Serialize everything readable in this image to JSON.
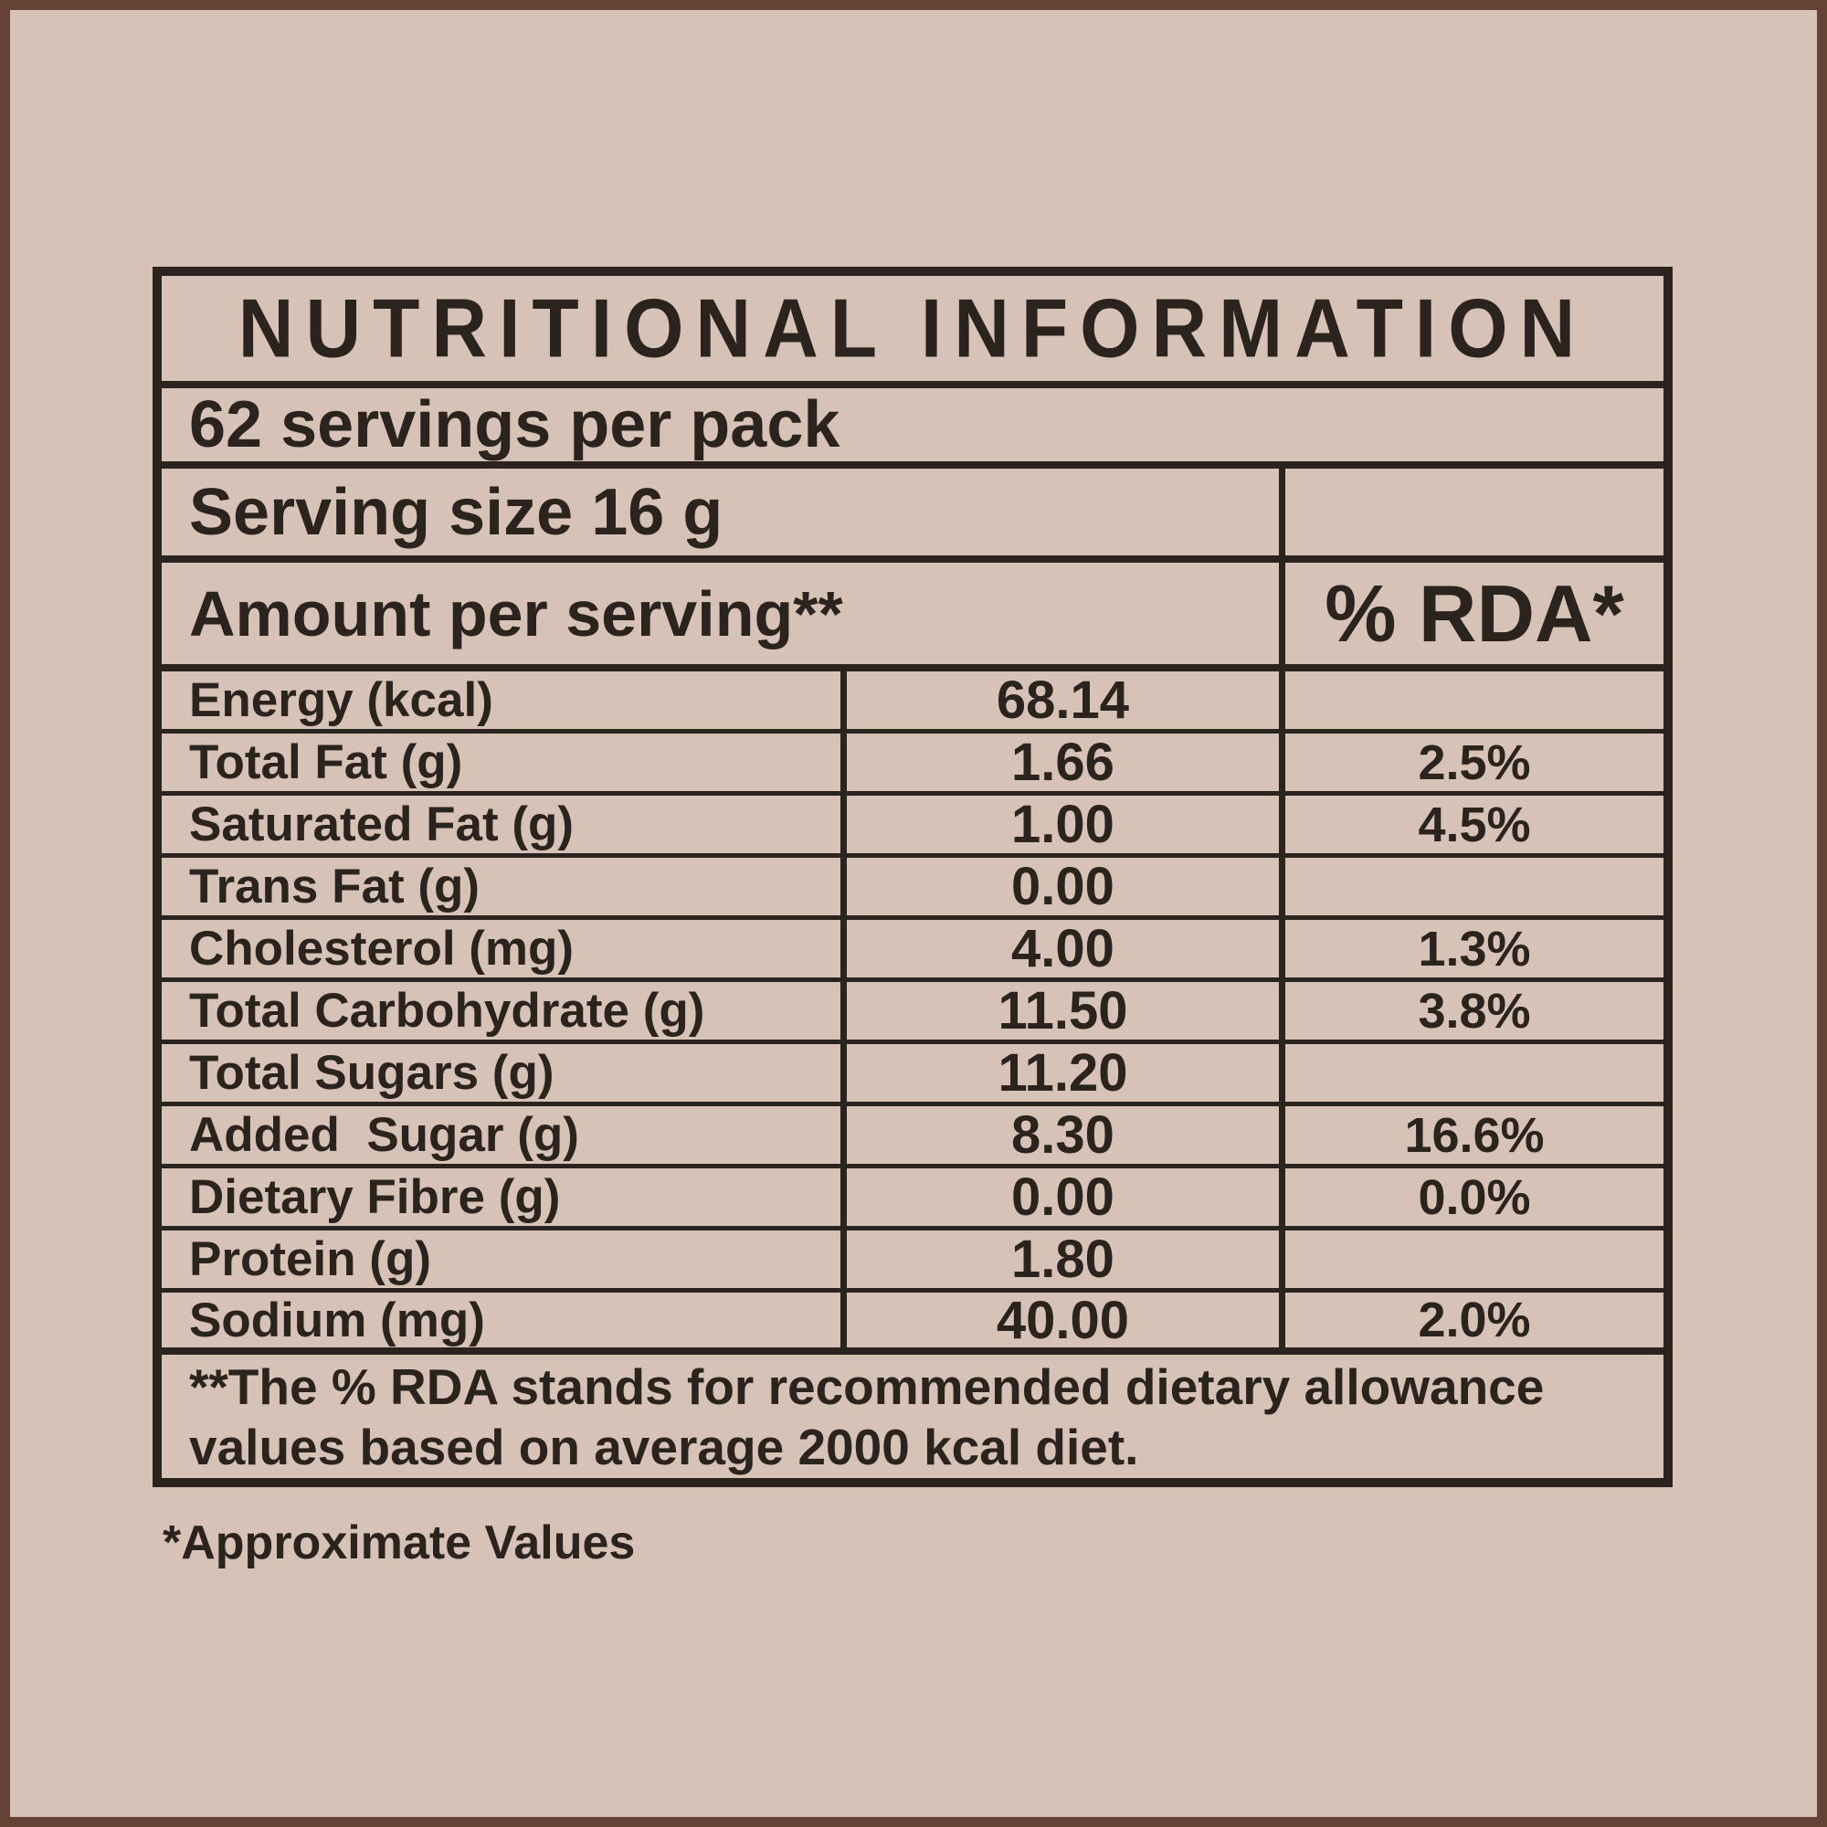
{
  "colors": {
    "background": "#d6c2b6",
    "frame": "#664135",
    "ink": "#2b231d"
  },
  "label": {
    "title": "NUTRITIONAL INFORMATION",
    "servings_per_pack": "62 servings per pack",
    "serving_size": "Serving size 16 g",
    "amount_header": "Amount per serving**",
    "rda_header": "% RDA*",
    "rows": [
      {
        "name": "Energy (kcal)",
        "amount": "68.14",
        "rda": ""
      },
      {
        "name": "Total Fat (g)",
        "amount": "1.66",
        "rda": "2.5%"
      },
      {
        "name": "Saturated Fat (g)",
        "amount": "1.00",
        "rda": "4.5%"
      },
      {
        "name": "Trans Fat (g)",
        "amount": "0.00",
        "rda": ""
      },
      {
        "name": "Cholesterol (mg)",
        "amount": "4.00",
        "rda": "1.3%"
      },
      {
        "name": "Total Carbohydrate (g)",
        "amount": "11.50",
        "rda": "3.8%"
      },
      {
        "name": "Total Sugars (g)",
        "amount": "11.20",
        "rda": ""
      },
      {
        "name": "Added  Sugar (g)",
        "amount": "8.30",
        "rda": "16.6%"
      },
      {
        "name": "Dietary Fibre (g)",
        "amount": "0.00",
        "rda": "0.0%"
      },
      {
        "name": "Protein (g)",
        "amount": "1.80",
        "rda": ""
      },
      {
        "name": "Sodium (mg)",
        "amount": "40.00",
        "rda": "2.0%"
      }
    ],
    "footnote_line1": "**The % RDA stands for recommended dietary allowance",
    "footnote_line2": "values based on average 2000 kcal diet.",
    "approximate_note": "*Approximate Values"
  }
}
